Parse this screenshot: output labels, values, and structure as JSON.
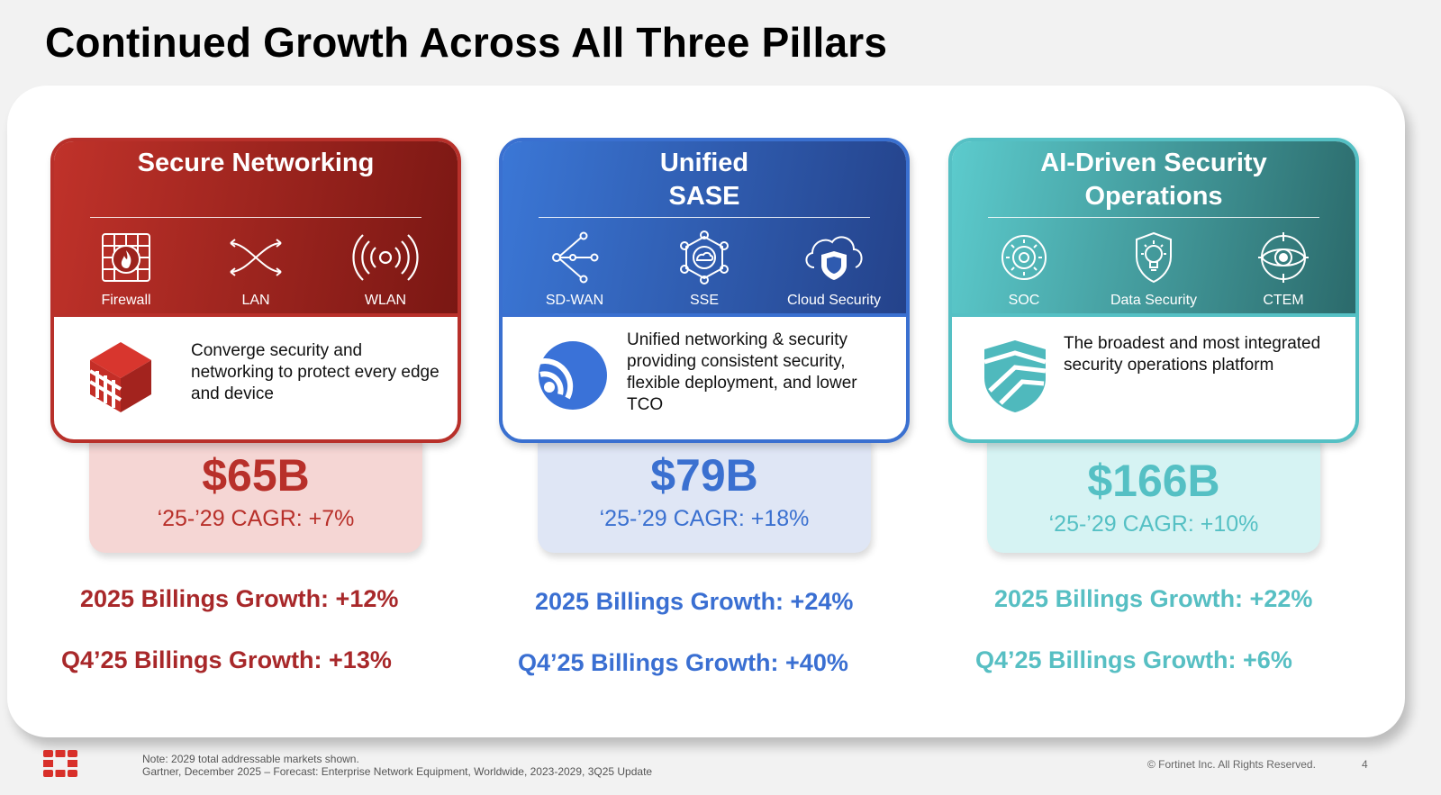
{
  "title": "Continued Growth Across All Three Pillars",
  "pillars": [
    {
      "title": "Secure Networking",
      "icons": [
        {
          "name": "firewall-icon",
          "label": "Firewall"
        },
        {
          "name": "lan-icon",
          "label": "LAN"
        },
        {
          "name": "wlan-icon",
          "label": "WLAN"
        }
      ],
      "logo": "fortinet-box-logo-icon",
      "description": "Converge security and networking to protect every edge and device",
      "tam": "$65B",
      "cagr": "‘25-’29 CAGR: +7%",
      "billings_2025": "2025 Billings Growth: +12%",
      "billings_q4": "Q4’25 Billings Growth: +13%",
      "color": "#b8302a"
    },
    {
      "title": "Unified SASE",
      "icons": [
        {
          "name": "sd-wan-icon",
          "label": "SD-WAN"
        },
        {
          "name": "sse-icon",
          "label": "SSE"
        },
        {
          "name": "cloud-security-icon",
          "label": "Cloud Security"
        }
      ],
      "logo": "sase-swirl-logo-icon",
      "description": "Unified networking & security providing consistent security, flexible deployment, and lower TCO",
      "tam": "$79B",
      "cagr": "‘25-’29 CAGR: +18%",
      "billings_2025": "2025 Billings Growth: +24%",
      "billings_q4": "Q4’25 Billings Growth: +40%",
      "color": "#3a70d0"
    },
    {
      "title": "AI-Driven Security Operations",
      "icons": [
        {
          "name": "soc-icon",
          "label": "SOC"
        },
        {
          "name": "data-security-icon",
          "label": "Data Security"
        },
        {
          "name": "ctem-icon",
          "label": "CTEM"
        }
      ],
      "logo": "shield-stripes-logo-icon",
      "description": "The broadest and most integrated security operations platform",
      "tam": "$166B",
      "cagr": "‘25-’29 CAGR: +10%",
      "billings_2025": "2025 Billings Growth: +22%",
      "billings_q4": "Q4’25 Billings Growth: +6%",
      "color": "#55c0c4"
    }
  ],
  "footer": {
    "note_line1": "Note: 2029 total addressable markets shown.",
    "note_line2": "Gartner, December 2025 – Forecast: Enterprise Network Equipment, Worldwide, 2023-2029, 3Q25 Update",
    "copyright": "© Fortinet Inc. All Rights Reserved.",
    "page": "4"
  }
}
